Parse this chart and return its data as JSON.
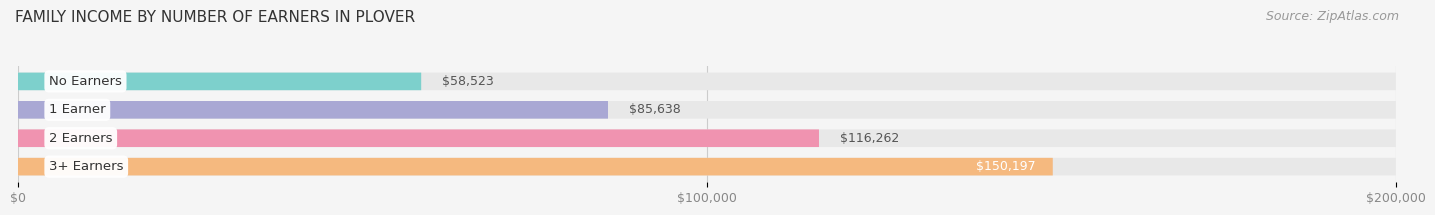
{
  "title": "FAMILY INCOME BY NUMBER OF EARNERS IN PLOVER",
  "source": "Source: ZipAtlas.com",
  "categories": [
    "No Earners",
    "1 Earner",
    "2 Earners",
    "3+ Earners"
  ],
  "values": [
    58523,
    85638,
    116262,
    150197
  ],
  "bar_colors": [
    "#7dd0cc",
    "#a9a8d4",
    "#f093b0",
    "#f5b97f"
  ],
  "value_labels": [
    "$58,523",
    "$85,638",
    "$116,262",
    "$150,197"
  ],
  "value_inside": [
    false,
    false,
    false,
    true
  ],
  "xlim": [
    0,
    200000
  ],
  "xticks": [
    0,
    100000,
    200000
  ],
  "xtick_labels": [
    "$0",
    "$100,000",
    "$200,000"
  ],
  "background_color": "#f5f5f5",
  "bar_background_color": "#e8e8e8",
  "title_fontsize": 11,
  "source_fontsize": 9,
  "label_fontsize": 9.5,
  "value_fontsize": 9,
  "tick_fontsize": 9
}
